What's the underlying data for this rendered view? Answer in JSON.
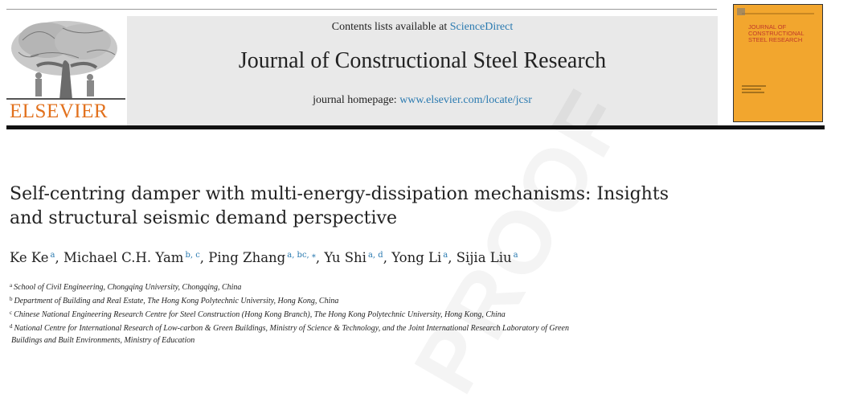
{
  "header": {
    "publisher": "ELSEVIER",
    "contents_prefix": "Contents lists available at ",
    "contents_link": "ScienceDirect",
    "journal_title": "Journal of Constructional Steel Research",
    "homepage_prefix": "journal homepage: ",
    "homepage_link": "www.elsevier.com/locate/jcsr"
  },
  "cover": {
    "title_line1": "JOURNAL OF",
    "title_line2": "CONSTRUCTIONAL",
    "title_line3": "STEEL RESEARCH"
  },
  "watermark": "PROOF",
  "article": {
    "title_line1": "Self-centring damper with multi-energy-dissipation mechanisms: Insights",
    "title_line2": "and structural seismic demand perspective",
    "authors": [
      {
        "name": "Ke Ke",
        "sup": "a",
        "sep": ", "
      },
      {
        "name": "Michael C.H. Yam",
        "sup": "b, c",
        "sep": ", "
      },
      {
        "name": "Ping Zhang",
        "sup": "a, bc, ⁎",
        "sep": ", "
      },
      {
        "name": "Yu Shi",
        "sup": "a, d",
        "sep": ", "
      },
      {
        "name": "Yong Li",
        "sup": "a",
        "sep": ", "
      },
      {
        "name": "Sijia Liu",
        "sup": "a",
        "sep": ""
      }
    ],
    "affiliations": [
      {
        "mark": "a",
        "text": "School of Civil Engineering, Chongqing University, Chongqing, China"
      },
      {
        "mark": "b",
        "text": "Department of Building and Real Estate, The Hong Kong Polytechnic University, Hong Kong, China"
      },
      {
        "mark": "c",
        "text": "Chinese National Engineering Research Centre for Steel Construction (Hong Kong Branch), The Hong Kong Polytechnic University, Hong Kong, China"
      },
      {
        "mark": "d",
        "text": "National Centre for International Research of Low-carbon & Green Buildings, Ministry of Science & Technology, and the Joint International Research Laboratory of Green"
      },
      {
        "mark": "",
        "text": "Buildings and Built Environments, Ministry of Education"
      }
    ]
  },
  "colors": {
    "publisher_orange": "#e2711d",
    "link_blue": "#2a7ab0",
    "cover_orange": "#f2a62e"
  }
}
